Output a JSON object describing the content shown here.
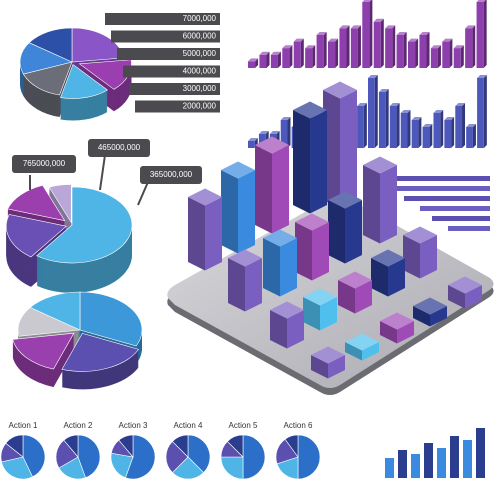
{
  "labels": [
    "7000,000",
    "6000,000",
    "5000,000",
    "4000,000",
    "3000,000",
    "2000,000"
  ],
  "callouts": [
    "765000,000",
    "465000,000",
    "365000,000"
  ],
  "actions": [
    "Action 1",
    "Action 2",
    "Action 3",
    "Action 4",
    "Action 5",
    "Action 6"
  ],
  "chart_data": [
    {
      "type": "bar",
      "color": "#8e3fae",
      "ylim": [
        0,
        10
      ],
      "values": [
        1,
        2,
        2,
        3,
        4,
        3,
        5,
        4,
        6,
        6,
        10,
        7,
        6,
        5,
        4,
        5,
        3,
        4,
        3,
        6,
        10
      ]
    },
    {
      "type": "bar",
      "color": "#4d58bd",
      "ylim": [
        0,
        10
      ],
      "values": [
        1,
        2,
        2,
        4,
        3,
        5,
        4,
        6,
        5,
        7,
        6,
        10,
        8,
        6,
        5,
        4,
        3,
        5,
        4,
        6,
        3,
        10
      ]
    }
  ]
}
